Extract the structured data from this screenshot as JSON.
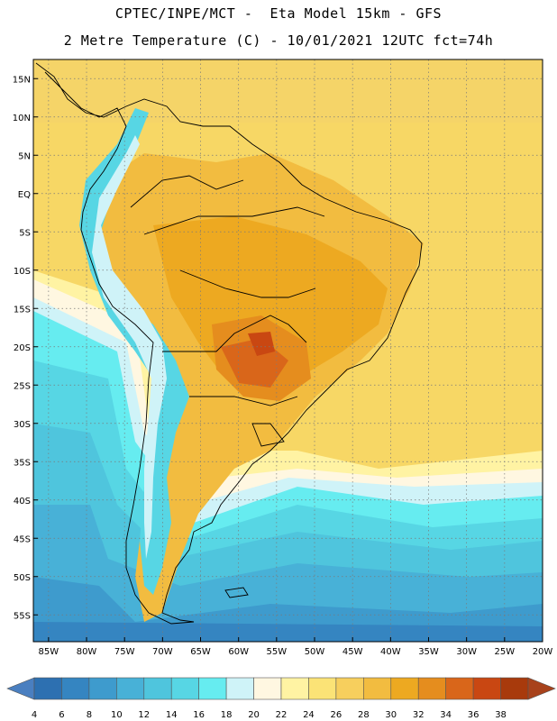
{
  "header": {
    "line1": "CPTEC/INPE/MCT -  Eta Model 15km - GFS",
    "line2": "2 Metre Temperature (C) - 10/01/2021 12UTC fct=74h"
  },
  "map": {
    "lat_labels": [
      "15N",
      "10N",
      "5N",
      "EQ",
      "5S",
      "10S",
      "15S",
      "20S",
      "25S",
      "30S",
      "35S",
      "40S",
      "45S",
      "50S",
      "55S"
    ],
    "lon_labels": [
      "85W",
      "80W",
      "75W",
      "70W",
      "65W",
      "60W",
      "55W",
      "50W",
      "45W",
      "40W",
      "35W",
      "30W",
      "25W",
      "20W"
    ],
    "lat_values": [
      15,
      10,
      5,
      0,
      -5,
      -10,
      -15,
      -20,
      -25,
      -30,
      -35,
      -40,
      -45,
      -50,
      -55
    ],
    "lon_values": [
      -85,
      -80,
      -75,
      -70,
      -65,
      -60,
      -55,
      -50,
      -45,
      -40,
      -35,
      -30,
      -25,
      -20
    ]
  },
  "colorbar": {
    "labels": [
      "4",
      "6",
      "8",
      "10",
      "12",
      "14",
      "16",
      "18",
      "20",
      "22",
      "24",
      "26",
      "28",
      "30",
      "32",
      "34",
      "36",
      "38"
    ],
    "colors": [
      "#2d70b1",
      "#3585c1",
      "#3e9bcd",
      "#48b1d7",
      "#4fc5dd",
      "#57d6e4",
      "#66ecf0",
      "#cff3f8",
      "#fff7e1",
      "#fff3a3",
      "#fbe376",
      "#f7cf5d",
      "#f2bc40",
      "#eda921",
      "#e58d1e",
      "#d9661a",
      "#c94712",
      "#a83a0c"
    ],
    "low_color": "#4a7fc0",
    "high_color": "#a8421b"
  }
}
